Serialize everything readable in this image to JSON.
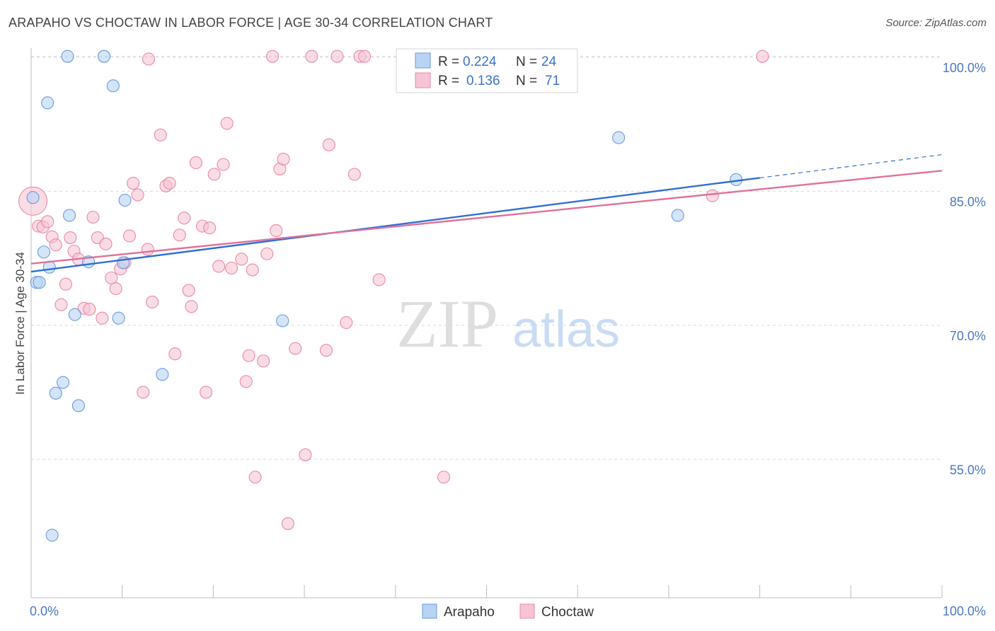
{
  "header": {
    "title": "ARAPAHO VS CHOCTAW IN LABOR FORCE | AGE 30-34 CORRELATION CHART",
    "source": "Source: ZipAtlas.com"
  },
  "watermark": {
    "zip": "ZIP",
    "atlas": "atlas"
  },
  "colors": {
    "arapaho_fill": "#b9d3f3",
    "arapaho_stroke": "#6a9be0",
    "arapaho_line": "#2f6fd0",
    "choctaw_fill": "#f7c4d3",
    "choctaw_stroke": "#e88aa8",
    "choctaw_line": "#e0709a",
    "grid": "#d9d9d9",
    "axis_label": "#4a78c0"
  },
  "chart_data": {
    "type": "scatter",
    "title": "ARAPAHO VS CHOCTAW IN LABOR FORCE | AGE 30-34 CORRELATION CHART",
    "xlabel": "",
    "ylabel": "In Labor Force | Age 30-34",
    "xlim": [
      0,
      100
    ],
    "ylim": [
      39.5,
      101.5
    ],
    "x_tick_labels": [
      "0.0%",
      "100.0%"
    ],
    "y_ticks": [
      55,
      70,
      85,
      100
    ],
    "y_tick_labels": [
      "55.0%",
      "70.0%",
      "85.0%",
      "100.0%"
    ],
    "grid": true,
    "legend": [
      {
        "name": "Arapaho",
        "r_label": "R =",
        "r_value": "0.224",
        "n_label": "N =",
        "n_value": "24"
      },
      {
        "name": "Choctaw",
        "r_label": "R =",
        "r_value": "0.136",
        "n_label": "N =",
        "n_value": "71"
      }
    ],
    "series": [
      {
        "name": "Arapaho",
        "points": [
          [
            0.2,
            84.3
          ],
          [
            0.6,
            74.8
          ],
          [
            0.9,
            74.8
          ],
          [
            1.4,
            78.2
          ],
          [
            1.8,
            94.9
          ],
          [
            2.0,
            76.5
          ],
          [
            2.3,
            46.5
          ],
          [
            2.7,
            62.4
          ],
          [
            3.5,
            63.6
          ],
          [
            4.2,
            82.3
          ],
          [
            4.8,
            71.2
          ],
          [
            5.2,
            61.0
          ],
          [
            6.3,
            77.1
          ],
          [
            4.0,
            100.1
          ],
          [
            8.0,
            100.1
          ],
          [
            9.0,
            96.8
          ],
          [
            9.6,
            70.8
          ],
          [
            10.1,
            77.0
          ],
          [
            10.3,
            84.0
          ],
          [
            14.4,
            64.5
          ],
          [
            27.6,
            70.5
          ],
          [
            64.5,
            91.0
          ],
          [
            71.0,
            82.3
          ],
          [
            77.4,
            86.3
          ]
        ],
        "trend": {
          "x": [
            0,
            80
          ],
          "y": [
            76.0,
            86.5
          ],
          "dashed_to": [
            100,
            89.1
          ]
        }
      },
      {
        "name": "Choctaw",
        "points": [
          [
            0.2,
            83.9
          ],
          [
            0.8,
            81.1
          ],
          [
            1.3,
            81.0
          ],
          [
            1.8,
            81.6
          ],
          [
            2.3,
            79.9
          ],
          [
            2.7,
            79.0
          ],
          [
            3.3,
            72.3
          ],
          [
            3.8,
            74.6
          ],
          [
            4.3,
            79.8
          ],
          [
            4.7,
            78.3
          ],
          [
            5.2,
            77.4
          ],
          [
            5.8,
            71.9
          ],
          [
            6.4,
            71.8
          ],
          [
            6.8,
            82.1
          ],
          [
            7.3,
            79.8
          ],
          [
            7.8,
            70.8
          ],
          [
            8.2,
            79.1
          ],
          [
            8.8,
            75.3
          ],
          [
            9.3,
            74.1
          ],
          [
            9.8,
            76.3
          ],
          [
            10.3,
            77.0
          ],
          [
            10.8,
            80.0
          ],
          [
            11.2,
            85.9
          ],
          [
            11.7,
            84.6
          ],
          [
            12.3,
            62.5
          ],
          [
            12.8,
            78.5
          ],
          [
            13.3,
            72.6
          ],
          [
            14.2,
            91.3
          ],
          [
            14.8,
            85.6
          ],
          [
            15.2,
            85.9
          ],
          [
            15.8,
            66.8
          ],
          [
            16.3,
            80.1
          ],
          [
            16.8,
            82.0
          ],
          [
            17.3,
            73.9
          ],
          [
            17.6,
            72.1
          ],
          [
            18.1,
            88.2
          ],
          [
            18.8,
            81.1
          ],
          [
            19.2,
            62.5
          ],
          [
            19.6,
            80.9
          ],
          [
            20.1,
            86.9
          ],
          [
            20.6,
            76.6
          ],
          [
            21.1,
            88.0
          ],
          [
            21.5,
            92.6
          ],
          [
            22.0,
            76.4
          ],
          [
            23.1,
            77.4
          ],
          [
            23.6,
            63.7
          ],
          [
            23.9,
            66.6
          ],
          [
            24.3,
            76.2
          ],
          [
            24.6,
            53.0
          ],
          [
            25.5,
            66.0
          ],
          [
            25.9,
            78.0
          ],
          [
            26.9,
            80.6
          ],
          [
            27.3,
            87.5
          ],
          [
            27.7,
            88.6
          ],
          [
            28.2,
            47.8
          ],
          [
            29.0,
            67.4
          ],
          [
            30.1,
            55.5
          ],
          [
            30.8,
            100.1
          ],
          [
            32.4,
            67.2
          ],
          [
            32.7,
            90.2
          ],
          [
            33.6,
            100.1
          ],
          [
            34.6,
            70.3
          ],
          [
            35.5,
            86.9
          ],
          [
            36.1,
            100.1
          ],
          [
            36.6,
            100.1
          ],
          [
            38.2,
            75.1
          ],
          [
            45.3,
            53.0
          ],
          [
            26.5,
            100.1
          ],
          [
            12.9,
            99.8
          ],
          [
            74.8,
            84.5
          ],
          [
            80.3,
            100.1
          ]
        ],
        "trend": {
          "x": [
            0,
            100
          ],
          "y": [
            76.9,
            87.3
          ]
        }
      }
    ]
  },
  "bottom_legend": [
    {
      "name": "Arapaho"
    },
    {
      "name": "Choctaw"
    }
  ]
}
